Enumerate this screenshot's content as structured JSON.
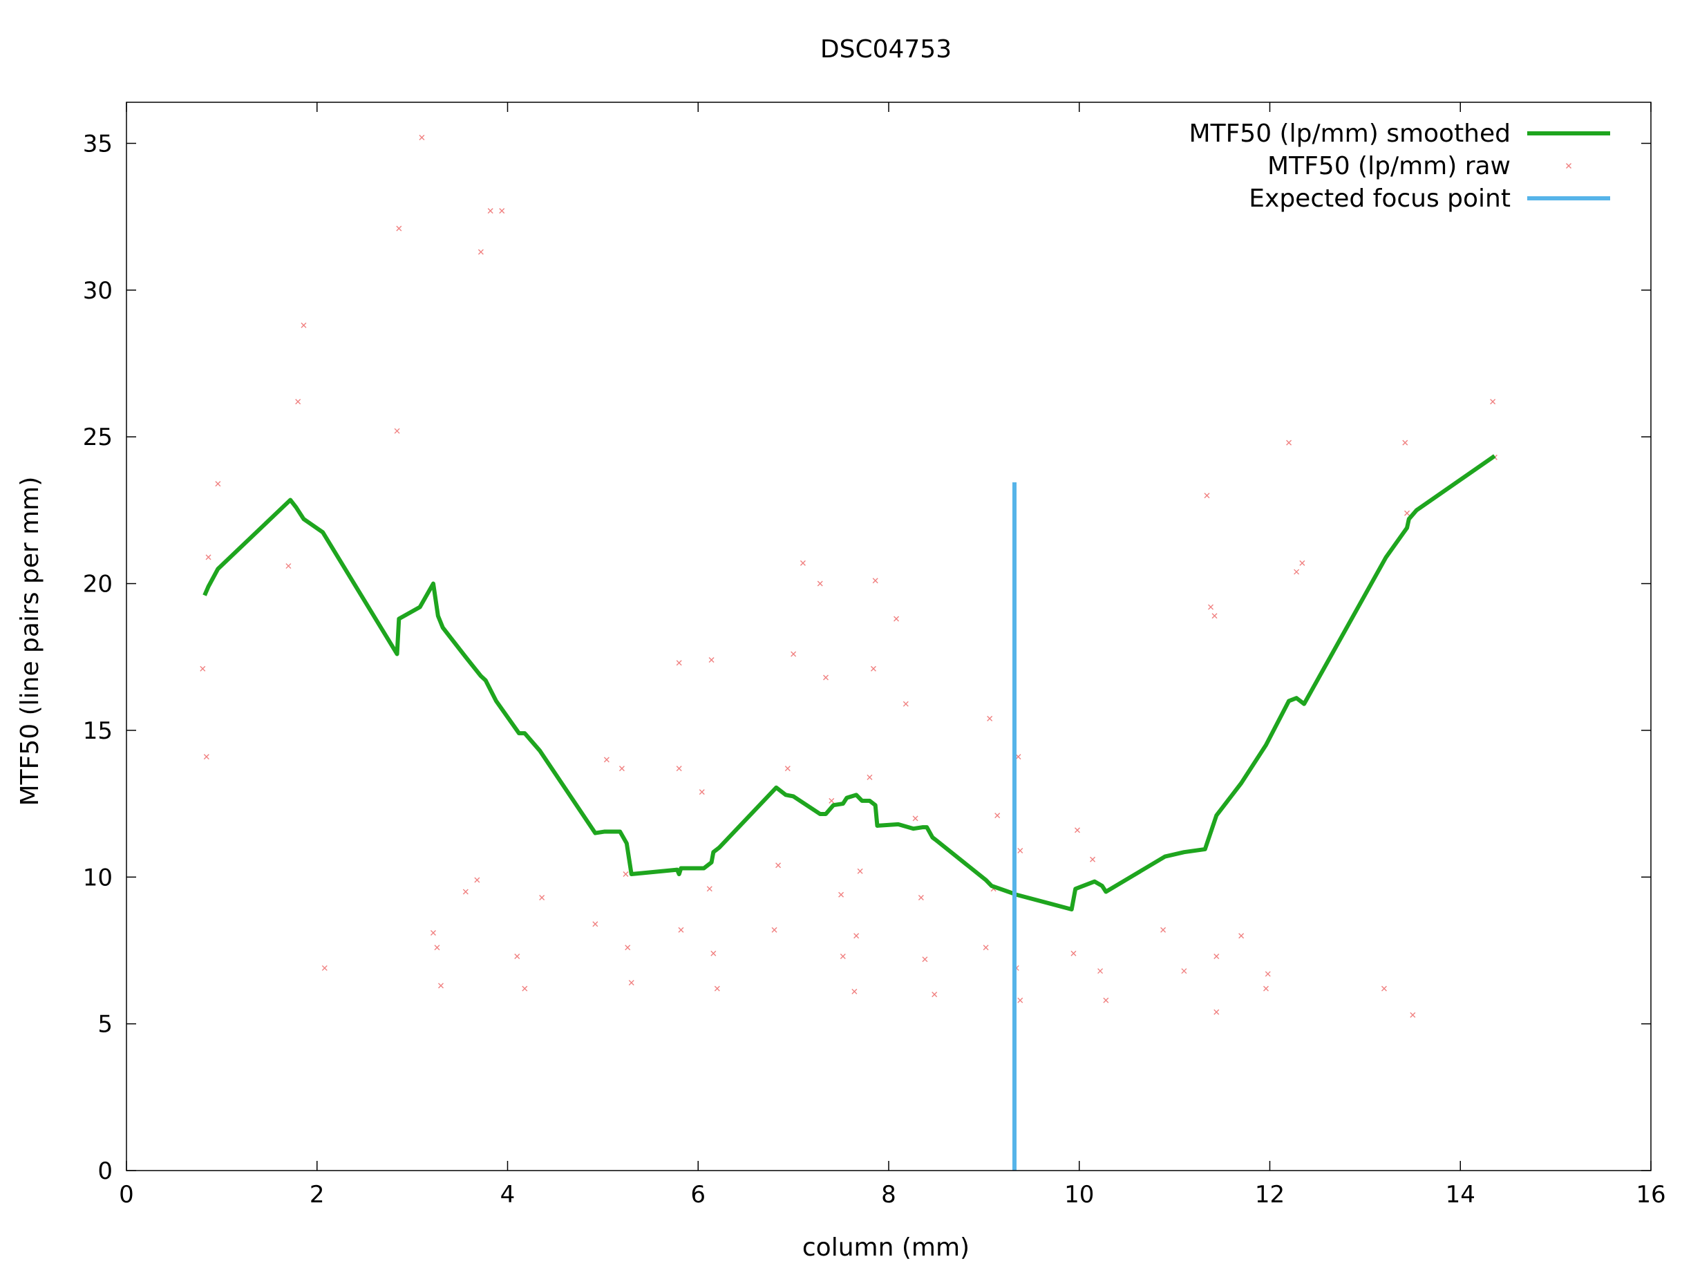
{
  "chart_data": {
    "type": "line",
    "title": "DSC04753",
    "xlabel": "column (mm)",
    "ylabel": "MTF50 (line pairs per mm)",
    "xlim": [
      0,
      16
    ],
    "ylim": [
      0,
      36.4
    ],
    "xticks": [
      0,
      2,
      4,
      6,
      8,
      10,
      12,
      14,
      16
    ],
    "yticks": [
      0,
      5,
      10,
      15,
      20,
      25,
      30,
      35
    ],
    "grid": false,
    "legend_position": "top-right",
    "series": [
      {
        "name": "MTF50 (lp/mm) smoothed",
        "kind": "line",
        "color": "#1ea51e",
        "points": [
          [
            0.82,
            19.6
          ],
          [
            0.86,
            19.9
          ],
          [
            0.96,
            20.5
          ],
          [
            1.72,
            22.85
          ],
          [
            1.78,
            22.6
          ],
          [
            1.86,
            22.2
          ],
          [
            2.06,
            21.75
          ],
          [
            2.84,
            17.6
          ],
          [
            2.86,
            18.8
          ],
          [
            3.08,
            19.2
          ],
          [
            3.22,
            20.0
          ],
          [
            3.27,
            18.9
          ],
          [
            3.32,
            18.5
          ],
          [
            3.56,
            17.5
          ],
          [
            3.72,
            16.85
          ],
          [
            3.77,
            16.7
          ],
          [
            3.88,
            16.0
          ],
          [
            4.12,
            14.9
          ],
          [
            4.18,
            14.9
          ],
          [
            4.34,
            14.3
          ],
          [
            4.92,
            11.5
          ],
          [
            5.02,
            11.55
          ],
          [
            5.18,
            11.55
          ],
          [
            5.25,
            11.15
          ],
          [
            5.3,
            10.1
          ],
          [
            5.78,
            10.25
          ],
          [
            5.8,
            10.1
          ],
          [
            5.82,
            10.3
          ],
          [
            6.06,
            10.3
          ],
          [
            6.14,
            10.5
          ],
          [
            6.16,
            10.85
          ],
          [
            6.22,
            11.0
          ],
          [
            6.82,
            13.05
          ],
          [
            6.92,
            12.8
          ],
          [
            7.0,
            12.75
          ],
          [
            7.28,
            12.15
          ],
          [
            7.34,
            12.15
          ],
          [
            7.42,
            12.45
          ],
          [
            7.52,
            12.5
          ],
          [
            7.56,
            12.7
          ],
          [
            7.66,
            12.8
          ],
          [
            7.72,
            12.6
          ],
          [
            7.8,
            12.6
          ],
          [
            7.86,
            12.45
          ],
          [
            7.88,
            11.75
          ],
          [
            8.1,
            11.8
          ],
          [
            8.26,
            11.65
          ],
          [
            8.36,
            11.7
          ],
          [
            8.4,
            11.7
          ],
          [
            8.46,
            11.35
          ],
          [
            8.5,
            11.25
          ],
          [
            9.02,
            9.9
          ],
          [
            9.08,
            9.7
          ],
          [
            9.3,
            9.45
          ],
          [
            9.34,
            9.4
          ],
          [
            9.92,
            8.9
          ],
          [
            9.96,
            9.6
          ],
          [
            10.16,
            9.85
          ],
          [
            10.24,
            9.7
          ],
          [
            10.28,
            9.5
          ],
          [
            10.9,
            10.7
          ],
          [
            11.1,
            10.85
          ],
          [
            11.32,
            10.95
          ],
          [
            11.44,
            12.1
          ],
          [
            11.7,
            13.2
          ],
          [
            11.96,
            14.5
          ],
          [
            12.2,
            16.0
          ],
          [
            12.28,
            16.1
          ],
          [
            12.36,
            15.9
          ],
          [
            13.22,
            20.9
          ],
          [
            13.44,
            21.9
          ],
          [
            13.46,
            22.2
          ],
          [
            13.5,
            22.35
          ],
          [
            13.54,
            22.5
          ],
          [
            14.36,
            24.35
          ]
        ]
      },
      {
        "name": "MTF50 (lp/mm) raw",
        "kind": "scatter",
        "color": "#f08080",
        "points": [
          [
            0.8,
            17.1
          ],
          [
            0.84,
            14.1
          ],
          [
            0.86,
            20.9
          ],
          [
            0.96,
            23.4
          ],
          [
            1.7,
            20.6
          ],
          [
            1.8,
            26.2
          ],
          [
            1.86,
            28.8
          ],
          [
            2.08,
            6.9
          ],
          [
            2.84,
            25.2
          ],
          [
            2.86,
            32.1
          ],
          [
            3.1,
            35.2
          ],
          [
            3.22,
            8.1
          ],
          [
            3.26,
            7.6
          ],
          [
            3.3,
            6.3
          ],
          [
            3.56,
            9.5
          ],
          [
            3.68,
            9.9
          ],
          [
            3.72,
            31.3
          ],
          [
            3.82,
            32.7
          ],
          [
            3.94,
            32.7
          ],
          [
            4.1,
            7.3
          ],
          [
            4.18,
            6.2
          ],
          [
            4.36,
            9.3
          ],
          [
            4.92,
            8.4
          ],
          [
            5.04,
            14.0
          ],
          [
            5.2,
            13.7
          ],
          [
            5.24,
            10.1
          ],
          [
            5.26,
            7.6
          ],
          [
            5.3,
            6.4
          ],
          [
            5.8,
            17.3
          ],
          [
            5.8,
            13.7
          ],
          [
            5.82,
            8.2
          ],
          [
            6.04,
            12.9
          ],
          [
            6.12,
            9.6
          ],
          [
            6.14,
            17.4
          ],
          [
            6.16,
            7.4
          ],
          [
            6.2,
            6.2
          ],
          [
            6.8,
            8.2
          ],
          [
            6.84,
            10.4
          ],
          [
            6.94,
            13.7
          ],
          [
            7.0,
            17.6
          ],
          [
            7.1,
            20.7
          ],
          [
            7.28,
            20.0
          ],
          [
            7.34,
            16.8
          ],
          [
            7.4,
            12.6
          ],
          [
            7.5,
            9.4
          ],
          [
            7.52,
            7.3
          ],
          [
            7.64,
            6.1
          ],
          [
            7.66,
            8.0
          ],
          [
            7.7,
            10.2
          ],
          [
            7.8,
            13.4
          ],
          [
            7.84,
            17.1
          ],
          [
            7.86,
            20.1
          ],
          [
            8.08,
            18.8
          ],
          [
            8.18,
            15.9
          ],
          [
            8.28,
            12.0
          ],
          [
            8.34,
            9.3
          ],
          [
            8.38,
            7.2
          ],
          [
            8.48,
            6.0
          ],
          [
            9.02,
            7.6
          ],
          [
            9.06,
            15.4
          ],
          [
            9.1,
            9.6
          ],
          [
            9.14,
            12.1
          ],
          [
            9.34,
            6.9
          ],
          [
            9.36,
            14.1
          ],
          [
            9.38,
            10.9
          ],
          [
            9.38,
            5.8
          ],
          [
            9.94,
            7.4
          ],
          [
            9.98,
            11.6
          ],
          [
            10.14,
            10.6
          ],
          [
            10.22,
            6.8
          ],
          [
            10.28,
            5.8
          ],
          [
            10.88,
            8.2
          ],
          [
            11.1,
            6.8
          ],
          [
            11.34,
            23.0
          ],
          [
            11.38,
            19.2
          ],
          [
            11.42,
            18.9
          ],
          [
            11.44,
            7.3
          ],
          [
            11.44,
            5.4
          ],
          [
            11.7,
            8.0
          ],
          [
            11.96,
            6.2
          ],
          [
            11.98,
            6.7
          ],
          [
            12.2,
            24.8
          ],
          [
            12.28,
            20.4
          ],
          [
            12.34,
            20.7
          ],
          [
            13.2,
            6.2
          ],
          [
            13.42,
            24.8
          ],
          [
            13.44,
            22.4
          ],
          [
            13.5,
            5.3
          ],
          [
            14.34,
            26.2
          ],
          [
            14.36,
            24.3
          ]
        ]
      },
      {
        "name": "Expected focus point",
        "kind": "line",
        "color": "#56b4e9",
        "points": [
          [
            9.32,
            0
          ],
          [
            9.32,
            23.45
          ]
        ]
      }
    ]
  }
}
